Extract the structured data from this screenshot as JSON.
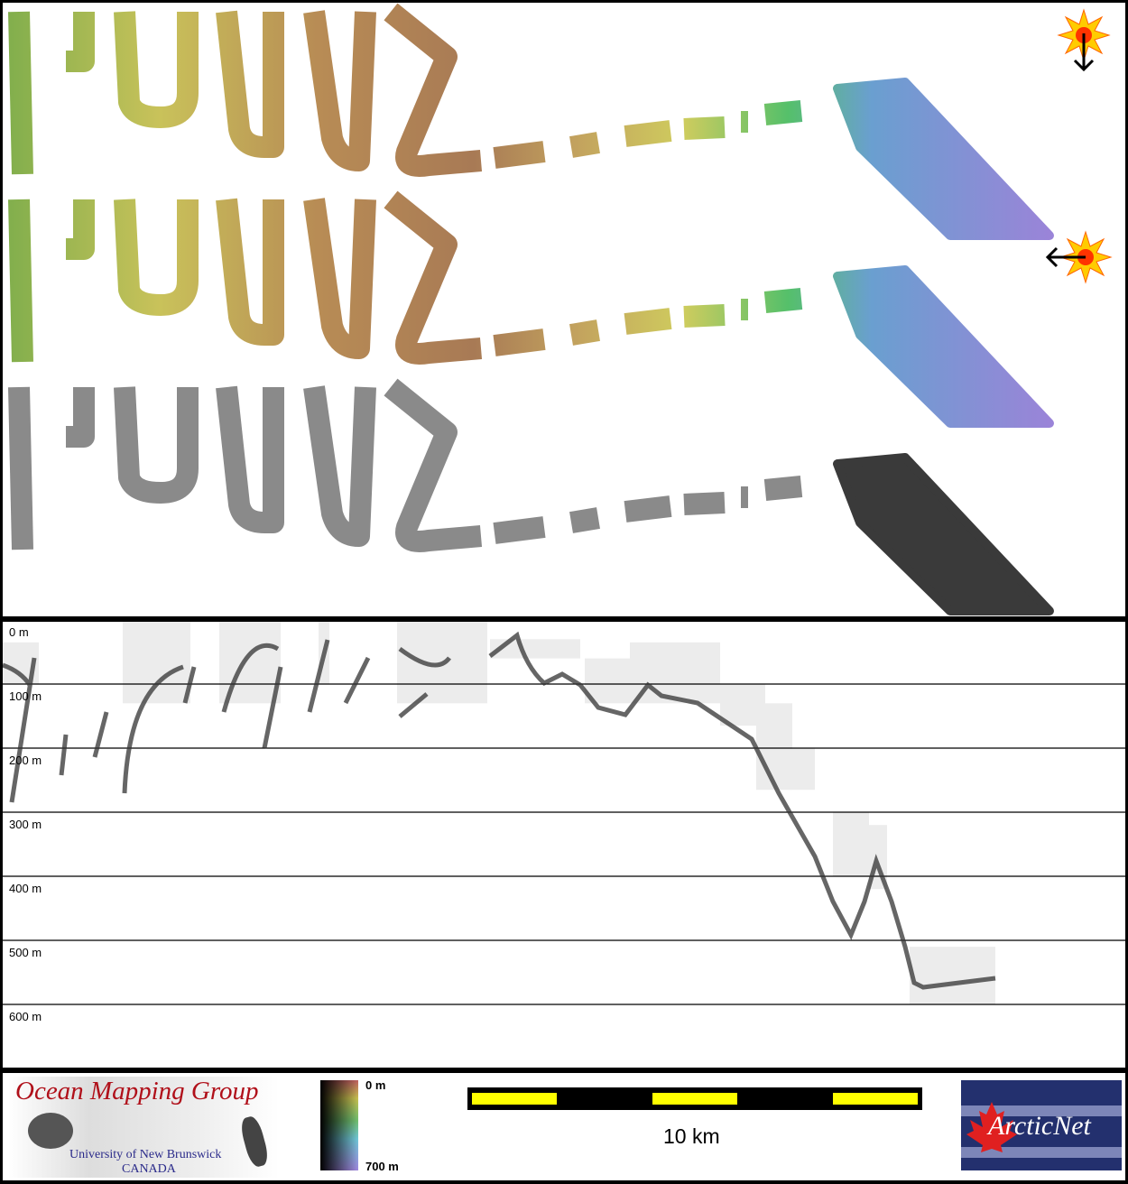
{
  "map": {
    "panels": [
      "hillshade-sun-north",
      "hillshade-sun-east",
      "backscatter"
    ],
    "sun_icons": [
      {
        "name": "sun-north-icon",
        "direction": "north"
      },
      {
        "name": "sun-east-icon",
        "direction": "east"
      }
    ]
  },
  "profile": {
    "depth_labels": [
      "0 m",
      "100 m",
      "200 m",
      "300 m",
      "400 m",
      "500 m",
      "600 m"
    ],
    "depth_values": [
      0,
      100,
      200,
      300,
      400,
      500,
      600
    ]
  },
  "footer": {
    "omg_title": "Ocean Mapping Group",
    "omg_university": "University of New Brunswick",
    "omg_country": "CANADA",
    "colorbar_top": "0 m",
    "colorbar_bottom": "700 m",
    "scale_label": "10 km",
    "arcticnet_logo": "ArcticNet"
  },
  "colors": {
    "scale_yellow": "#ffff00",
    "scale_black": "#000000",
    "omg_red": "#b0101a",
    "arcticnet_blue": "#23306e"
  }
}
